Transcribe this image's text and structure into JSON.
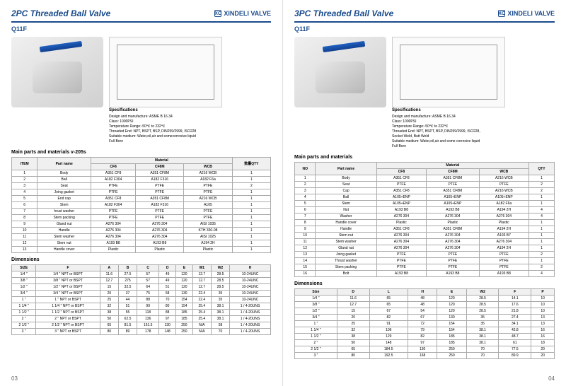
{
  "brand": "XINDELI VALVE",
  "brandMark": "XO",
  "left": {
    "title": "2PC Threaded Ball Valve",
    "model": "Q11F",
    "pageNum": "03",
    "specs": {
      "title": "Specifications",
      "lines": [
        "Design and manufacture: ASME B 16.34",
        "Class: 1000PSI",
        "Temperature Range:-50℃ to 232℃",
        "Threaded End: NPT, BSPT, BSP, DIN259/2999, ISO228",
        "Suitable medium: Water,oil,air and somecorrosive liquid",
        "Full Bore"
      ]
    },
    "partsTitle": "Main parts and materials v-205s",
    "partsHeaders": [
      "ITEM",
      "Part name",
      "CF8",
      "CF8M",
      "WCB",
      "数量QTY"
    ],
    "materialSpan": "Material",
    "parts": [
      [
        "1",
        "Body",
        "A351 CF8",
        "A351 CF8M",
        "A216 WCB",
        "1"
      ],
      [
        "2",
        "Ball",
        "A182 F304",
        "A182 F316",
        "A182 F6a",
        "1"
      ],
      [
        "3",
        "Seat",
        "PTFE",
        "PTFE",
        "PTFE",
        "2"
      ],
      [
        "4",
        "Joing gasket",
        "PTFE",
        "PTFE",
        "PTFE",
        "1"
      ],
      [
        "5",
        "End cap",
        "A351 CF8",
        "A351 CF8M",
        "A216 WCB",
        "1"
      ],
      [
        "6",
        "Stem",
        "A182 F304",
        "A182 F316",
        "A105",
        "1"
      ],
      [
        "7",
        "hrust washer",
        "PTFE",
        "PTFE",
        "PTFE",
        "1"
      ],
      [
        "8",
        "Stem packing",
        "PTFE",
        "PTFE",
        "PTFE",
        "1"
      ],
      [
        "9",
        "Gland nut",
        "A276 304",
        "A276 304",
        "AISI 1035",
        "1"
      ],
      [
        "10",
        "Handle",
        "A276 304",
        "A276 304",
        "KTH 330-08",
        "1"
      ],
      [
        "11",
        "Stem washer",
        "A276 304",
        "A276 304",
        "AISI 1025",
        "1"
      ],
      [
        "12",
        "Stem nut",
        "A193 B8",
        "A193 B8",
        "A194 2H",
        "1"
      ],
      [
        "13",
        "Handle cover",
        "Plastic",
        "Plastic",
        "Plastic",
        "1"
      ]
    ],
    "dimTitle": "Dimensions",
    "dimHeaders": [
      "SIZE",
      "F",
      "A",
      "B",
      "C",
      "D",
      "E",
      "W1",
      "W2",
      "H"
    ],
    "dims": [
      [
        "1/4 \"",
        "1/4 \" NPT or BSPT",
        "11.6",
        "27.5",
        "57",
        "49",
        "120",
        "12.7",
        "28.5",
        "10-24UNC"
      ],
      [
        "3/8 \"",
        "3/8 \" NPT or BSPT",
        "12.7",
        "275",
        "57",
        "49",
        "120",
        "12.7",
        "28.5",
        "10-24UNC"
      ],
      [
        "1/2 \"",
        "1/2 \" NPT or BSPT",
        "15",
        "32.5",
        "64",
        "51",
        "120",
        "12.7",
        "28.5",
        "10-24UNC"
      ],
      [
        "3/4 \"",
        "3/4 \" NPT or BSPT",
        "20",
        "37",
        "75",
        "58",
        "130",
        "22.4",
        "35",
        "10-24UNC"
      ],
      [
        "1 \"",
        "1 \" NPT or BSPT",
        "25",
        "44",
        "88",
        "70",
        "154",
        "22.4",
        "35",
        "10-24UNC"
      ],
      [
        "1 1/4 \"",
        "1 1/4 \" NPT or BSPT",
        "32",
        "51",
        "99",
        "80",
        "154",
        "25.4",
        "38.1",
        "1 / 4-20UNS"
      ],
      [
        "1 1/2 \"",
        "1 1/2 \" NPT or BSPT",
        "38",
        "55",
        "118",
        "88",
        "185",
        "25.4",
        "38.1",
        "1 / 4-20UNS"
      ],
      [
        "2 \"",
        "2 \" NPT or BSPT",
        "50",
        "62.5",
        "136",
        "97",
        "185",
        "25.4",
        "38.1",
        "1 / 4-20UNS"
      ],
      [
        "2 1/2 \"",
        "2 1/2 \" NPT or BSPT",
        "65",
        "81.5",
        "161.5",
        "130",
        "250",
        "N/A",
        "58",
        "1 / 4-20UNS"
      ],
      [
        "3 \"",
        "3 \" NPT or BSPT",
        "80",
        "89",
        "178",
        "148",
        "250",
        "N/A",
        "70",
        "1 / 4-20UNS"
      ]
    ]
  },
  "right": {
    "title": "3PC Threaded Ball Valve",
    "model": "Q11F",
    "pageNum": "04",
    "specs": {
      "title": "Specifications",
      "lines": [
        "Design and manufacture: ASME B 16.34",
        "Class: 1000PSI",
        "Temperature Range:-50℃ to 232℃",
        "Threaded End: NPT, BSPT, BSP, DIN259/2999, ISO228, Socket Weld, Butt Weld",
        "Suitable medium: Water,oil,air and some corrosive liquid",
        "Full Bore"
      ]
    },
    "partsTitle": "Main parts and materials",
    "partsHeaders": [
      "NO",
      "Part name",
      "CF8",
      "CF8M",
      "WCB",
      "QTY"
    ],
    "materialSpan": "Material",
    "parts": [
      [
        "1",
        "Body",
        "A351 CF8",
        "A351 CF8M",
        "A216 WCB",
        "1"
      ],
      [
        "2",
        "Seat",
        "PTFE",
        "PTFE",
        "PTFE",
        "2"
      ],
      [
        "3",
        "Cap",
        "A351 CF8",
        "A351 CF8M",
        "A216 WCB",
        "2"
      ],
      [
        "4",
        "Ball",
        "A105+ENP",
        "A105+ENP",
        "A105+ENP",
        "1"
      ],
      [
        "5",
        "Stem",
        "A105+ENP",
        "A105+ENP",
        "A182 F6a",
        "1"
      ],
      [
        "6",
        "Nut",
        "A193 B8",
        "A193 B8",
        "A194 2H",
        "4"
      ],
      [
        "7",
        "Washer",
        "A276 304",
        "A276 304",
        "A276 304",
        "4"
      ],
      [
        "8",
        "Handle cover",
        "Plastic",
        "Plastic",
        "Plastic",
        "1"
      ],
      [
        "9",
        "Handle",
        "A351 CF8",
        "A351 CF8M",
        "A194 2H",
        "1"
      ],
      [
        "10",
        "Stem nut",
        "A276 304",
        "A276 304",
        "A193 B7",
        "1"
      ],
      [
        "11",
        "Stem washer",
        "A276 304",
        "A276 304",
        "A276 304",
        "1"
      ],
      [
        "12",
        "Gland nut",
        "A276 304",
        "A276 304",
        "A194 2H",
        "1"
      ],
      [
        "13",
        "Joing gasket",
        "PTFE",
        "PTFE",
        "PTFE",
        "2"
      ],
      [
        "14",
        "Thrust washer",
        "PTFE",
        "PTFE",
        "PTFE",
        "1"
      ],
      [
        "15",
        "Stem packing",
        "PTFE",
        "PTFE",
        "PTFE",
        "2"
      ],
      [
        "16",
        "Bolt",
        "A193 B8",
        "A193 B8",
        "A193 B8",
        "4"
      ]
    ],
    "dimTitle": "Dimensions",
    "dimHeaders": [
      "Size",
      "D",
      "L",
      "H",
      "E",
      "W2",
      "F",
      "P"
    ],
    "dims": [
      [
        "1/4 \"",
        "11.6",
        "65",
        "48",
        "120",
        "28.5",
        "14.1",
        "10"
      ],
      [
        "3/8 \"",
        "12.7",
        "65",
        "48",
        "120",
        "28.5",
        "17.6",
        "10"
      ],
      [
        "1/2 \"",
        "15",
        "67",
        "54",
        "120",
        "28.5",
        "21.8",
        "10"
      ],
      [
        "3/4 \"",
        "20",
        "82",
        "67",
        "130",
        "35",
        "27.4",
        "13"
      ],
      [
        "1 \"",
        "25",
        "91",
        "72",
        "154",
        "35",
        "34.1",
        "13"
      ],
      [
        "1 1/4 \"",
        "32",
        "106",
        "79",
        "154",
        "38.1",
        "42.8",
        "16"
      ],
      [
        "1 1/2 \"",
        "38",
        "129",
        "82",
        "185",
        "38.1",
        "48.7",
        "16"
      ],
      [
        "2 \"",
        "50",
        "148",
        "97",
        "185",
        "38.1",
        "61",
        "18"
      ],
      [
        "2 1/2 \"",
        "65",
        "184.5",
        "130",
        "250",
        "70",
        "77.5",
        "20"
      ],
      [
        "3 \"",
        "80",
        "192.5",
        "168",
        "250",
        "70",
        "89.9",
        "20"
      ]
    ]
  },
  "colors": {
    "primary": "#1a4b8c",
    "handle": "#2060c0"
  }
}
